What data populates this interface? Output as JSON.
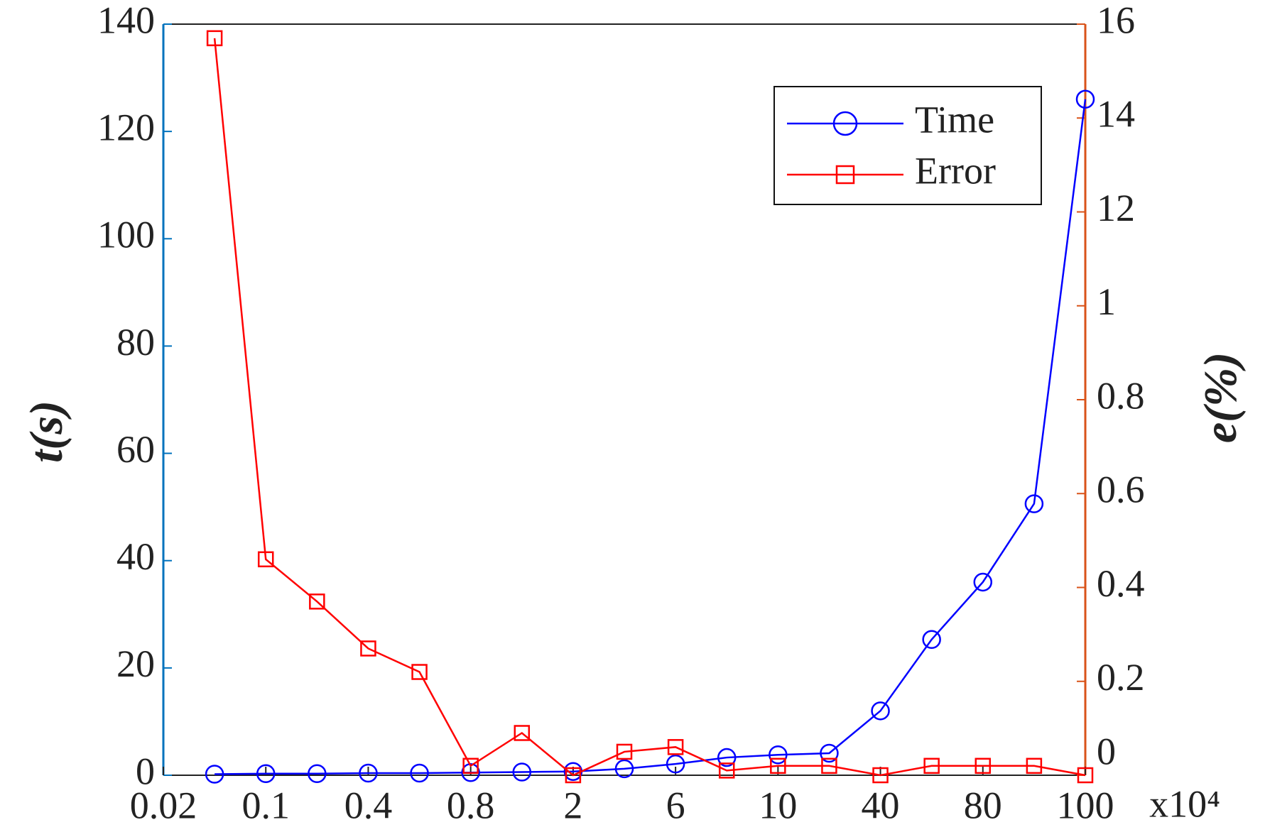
{
  "chart_data": {
    "type": "line",
    "x_label_suffix": "x10⁴",
    "y_label": "t(s)",
    "y2_label": "e(%)",
    "x": [
      1,
      2,
      3,
      4,
      5,
      6,
      7,
      8,
      9,
      10,
      11,
      12,
      13,
      14,
      15,
      16,
      17,
      18
    ],
    "xlim": [
      0,
      18
    ],
    "xticks": [
      {
        "value": 0,
        "label": "0.02"
      },
      {
        "value": 2,
        "label": "0.1"
      },
      {
        "value": 4,
        "label": "0.4"
      },
      {
        "value": 6,
        "label": "0.8"
      },
      {
        "value": 8,
        "label": "2"
      },
      {
        "value": 10,
        "label": "6"
      },
      {
        "value": 12,
        "label": "10"
      },
      {
        "value": 14,
        "label": "40"
      },
      {
        "value": 16,
        "label": "80"
      },
      {
        "value": 18,
        "label": "100"
      }
    ],
    "ylim": [
      0,
      140
    ],
    "yticks": [
      0,
      20,
      40,
      60,
      80,
      100,
      120,
      140
    ],
    "y2lim": [
      0,
      16
    ],
    "y2ticks": [
      0,
      0.2,
      0.4,
      0.6,
      0.8,
      1,
      12,
      14,
      16
    ],
    "y_axis_color": "#0072bd",
    "y2_axis_color": "#d95319",
    "legend": "upper right",
    "series": [
      {
        "name": "Time",
        "color": "#0000ff",
        "marker": "circle",
        "axis": "y",
        "values": [
          0.2,
          0.3,
          0.3,
          0.4,
          0.4,
          0.5,
          0.6,
          0.7,
          1.2,
          2.1,
          3.3,
          3.8,
          4.1,
          12,
          25.3,
          36,
          50.6,
          126
        ]
      },
      {
        "name": "Error",
        "color": "#ff0000",
        "marker": "square",
        "axis": "y2",
        "values": [
          15.7,
          0.46,
          0.37,
          0.27,
          0.22,
          0.02,
          0.09,
          0,
          0.05,
          0.06,
          0.01,
          0.02,
          0.02,
          0,
          0.02,
          0.02,
          0.02,
          0
        ]
      }
    ]
  }
}
